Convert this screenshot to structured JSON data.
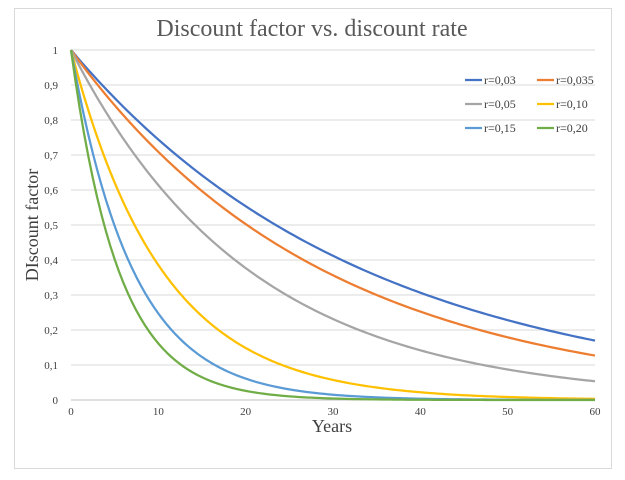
{
  "chart_data": {
    "type": "line",
    "title": "Discount factor vs. discount rate",
    "xlabel": "Years",
    "ylabel": "DIscount factor",
    "xlim": [
      0,
      60
    ],
    "ylim": [
      0,
      1
    ],
    "x_ticks": [
      "0",
      "10",
      "20",
      "30",
      "40",
      "50",
      "60"
    ],
    "y_ticks": [
      "0",
      "0,1",
      "0,2",
      "0,3",
      "0,4",
      "0,5",
      "0,6",
      "0,7",
      "0,8",
      "0,9",
      "1"
    ],
    "grid": true,
    "legend_position": "top-right",
    "series": [
      {
        "name": "r=0,03",
        "rate": 0.03,
        "color": "#4472c4"
      },
      {
        "name": "r=0,035",
        "rate": 0.035,
        "color": "#ed7d31"
      },
      {
        "name": "r=0,05",
        "rate": 0.05,
        "color": "#a5a5a5"
      },
      {
        "name": "r=0,10",
        "rate": 0.1,
        "color": "#ffc000"
      },
      {
        "name": "r=0,15",
        "rate": 0.15,
        "color": "#5b9bd5"
      },
      {
        "name": "r=0,20",
        "rate": 0.2,
        "color": "#70ad47"
      }
    ]
  }
}
